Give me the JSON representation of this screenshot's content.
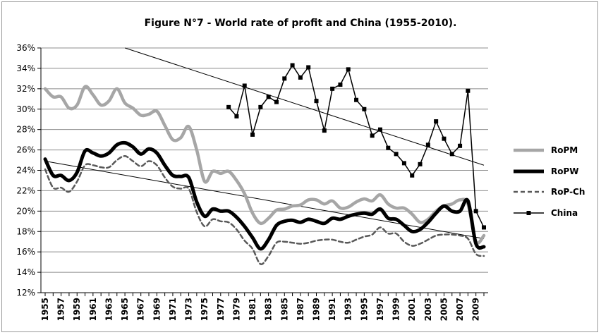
{
  "chart_data": {
    "type": "line",
    "title": "Figure N°7 - World rate of profit and China (1955-2010).",
    "xlabel": "",
    "ylabel": "",
    "ylim": [
      12,
      36
    ],
    "yticks": [
      "12%",
      "14%",
      "16%",
      "18%",
      "20%",
      "22%",
      "24%",
      "26%",
      "28%",
      "30%",
      "32%",
      "34%",
      "36%"
    ],
    "xlim": [
      1955,
      2010
    ],
    "xtick_labels": [
      "1955",
      "1957",
      "1959",
      "1961",
      "1963",
      "1965",
      "1967",
      "1969",
      "1971",
      "1973",
      "1975",
      "1977",
      "1979",
      "1981",
      "1983",
      "1985",
      "1987",
      "1989",
      "1991",
      "1993",
      "1995",
      "1997",
      "1999",
      "2001",
      "2003",
      "2005",
      "2007",
      "2009"
    ],
    "grid": "horizontal",
    "legend_position": "right",
    "series": [
      {
        "name": "RoPM",
        "style": "thick-light-gray",
        "color": "#a6a6a6",
        "x": [
          1955,
          1956,
          1957,
          1958,
          1959,
          1960,
          1961,
          1962,
          1963,
          1964,
          1965,
          1966,
          1967,
          1968,
          1969,
          1970,
          1971,
          1972,
          1973,
          1974,
          1975,
          1976,
          1977,
          1978,
          1979,
          1980,
          1981,
          1982,
          1983,
          1984,
          1985,
          1986,
          1987,
          1988,
          1989,
          1990,
          1991,
          1992,
          1993,
          1994,
          1995,
          1996,
          1997,
          1998,
          1999,
          2000,
          2001,
          2002,
          2003,
          2004,
          2005,
          2006,
          2007,
          2008,
          2009,
          2010
        ],
        "values": [
          32.0,
          31.2,
          31.2,
          30.1,
          30.4,
          32.2,
          31.4,
          30.4,
          30.8,
          32.0,
          30.6,
          30.1,
          29.4,
          29.5,
          29.8,
          28.4,
          27.0,
          27.2,
          28.3,
          26.0,
          22.9,
          23.9,
          23.7,
          23.9,
          23.0,
          21.7,
          19.8,
          18.8,
          19.3,
          20.1,
          20.2,
          20.5,
          20.6,
          21.1,
          21.1,
          20.7,
          21.0,
          20.3,
          20.4,
          20.9,
          21.2,
          21.0,
          21.6,
          20.7,
          20.3,
          20.3,
          19.7,
          18.9,
          19.2,
          20.0,
          20.5,
          20.7,
          21.1,
          20.7,
          17.0,
          17.6
        ]
      },
      {
        "name": "RoPW",
        "style": "thick-black",
        "color": "#000000",
        "x": [
          1955,
          1956,
          1957,
          1958,
          1959,
          1960,
          1961,
          1962,
          1963,
          1964,
          1965,
          1966,
          1967,
          1968,
          1969,
          1970,
          1971,
          1972,
          1973,
          1974,
          1975,
          1976,
          1977,
          1978,
          1979,
          1980,
          1981,
          1982,
          1983,
          1984,
          1985,
          1986,
          1987,
          1988,
          1989,
          1990,
          1991,
          1992,
          1993,
          1994,
          1995,
          1996,
          1997,
          1998,
          1999,
          2000,
          2001,
          2002,
          2003,
          2004,
          2005,
          2006,
          2007,
          2008,
          2009,
          2010
        ],
        "values": [
          25.1,
          23.5,
          23.5,
          23.0,
          23.8,
          25.9,
          25.7,
          25.4,
          25.7,
          26.5,
          26.7,
          26.3,
          25.6,
          26.1,
          25.7,
          24.5,
          23.5,
          23.4,
          23.3,
          20.9,
          19.5,
          20.2,
          20.0,
          20.0,
          19.4,
          18.5,
          17.4,
          16.3,
          17.2,
          18.6,
          19.0,
          19.1,
          18.9,
          19.2,
          19.0,
          18.8,
          19.3,
          19.2,
          19.5,
          19.7,
          19.8,
          19.7,
          20.2,
          19.3,
          19.2,
          18.6,
          18.0,
          18.2,
          18.9,
          19.8,
          20.5,
          20.0,
          20.0,
          21.0,
          16.8,
          16.5
        ]
      },
      {
        "name": "RoP-Ch",
        "style": "dashed-dark-gray",
        "color": "#595959",
        "x": [
          1955,
          1956,
          1957,
          1958,
          1959,
          1960,
          1961,
          1962,
          1963,
          1964,
          1965,
          1966,
          1967,
          1968,
          1969,
          1970,
          1971,
          1972,
          1973,
          1974,
          1975,
          1976,
          1977,
          1978,
          1979,
          1980,
          1981,
          1982,
          1983,
          1984,
          1985,
          1986,
          1987,
          1988,
          1989,
          1990,
          1991,
          1992,
          1993,
          1994,
          1995,
          1996,
          1997,
          1998,
          1999,
          2000,
          2001,
          2002,
          2003,
          2004,
          2005,
          2006,
          2007,
          2008,
          2009,
          2010
        ],
        "values": [
          24.1,
          22.3,
          22.3,
          21.9,
          22.9,
          24.5,
          24.5,
          24.3,
          24.3,
          25.0,
          25.4,
          24.9,
          24.4,
          24.9,
          24.5,
          23.3,
          22.4,
          22.2,
          22.2,
          19.9,
          18.5,
          19.2,
          19.0,
          18.9,
          18.2,
          17.1,
          16.3,
          14.8,
          15.6,
          16.9,
          17.0,
          16.9,
          16.8,
          16.9,
          17.1,
          17.2,
          17.2,
          17.0,
          16.9,
          17.2,
          17.5,
          17.7,
          18.4,
          17.8,
          17.8,
          17.0,
          16.6,
          16.8,
          17.2,
          17.6,
          17.7,
          17.7,
          17.6,
          17.3,
          15.8,
          15.6
        ]
      },
      {
        "name": "China",
        "style": "line-square-markers",
        "color": "#000000",
        "x": [
          1978,
          1979,
          1980,
          1981,
          1982,
          1983,
          1984,
          1985,
          1986,
          1987,
          1988,
          1989,
          1990,
          1991,
          1992,
          1993,
          1994,
          1995,
          1996,
          1997,
          1998,
          1999,
          2000,
          2001,
          2002,
          2003,
          2004,
          2005,
          2006,
          2007,
          2008,
          2009,
          2010
        ],
        "values": [
          30.2,
          29.3,
          32.3,
          27.5,
          30.2,
          31.2,
          30.7,
          33.0,
          34.3,
          33.1,
          34.1,
          30.8,
          27.9,
          32.0,
          32.4,
          33.9,
          30.9,
          30.0,
          27.4,
          28.0,
          26.2,
          25.6,
          24.7,
          23.5,
          24.6,
          26.5,
          28.8,
          27.1,
          25.6,
          26.4,
          31.8,
          20.0,
          18.4
        ]
      }
    ],
    "trendlines": [
      {
        "name": "china-trend",
        "from": [
          1965,
          36.0
        ],
        "to": [
          2010,
          24.5
        ]
      },
      {
        "name": "world-trend",
        "from": [
          1955,
          24.9
        ],
        "to": [
          2010,
          17.3
        ]
      }
    ]
  }
}
